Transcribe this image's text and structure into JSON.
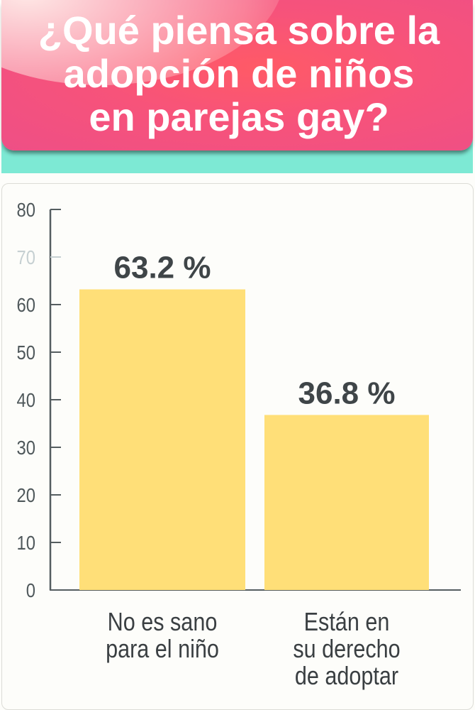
{
  "header": {
    "title_lines": [
      "¿Qué piensa sobre la",
      "adopción de niños",
      "en parejas gay?"
    ]
  },
  "colors": {
    "banner": "#f7537a",
    "band": "#7de9d4",
    "bar": "#ffdf78",
    "axis": "#555d60",
    "label": "#3f4548"
  },
  "chart_data": {
    "type": "bar",
    "title": "¿Qué piensa sobre la adopción de niños en parejas gay?",
    "categories": [
      [
        "No es sano",
        "para el niño"
      ],
      [
        "Están en",
        "su derecho",
        "de adoptar"
      ]
    ],
    "values": [
      63.2,
      36.8
    ],
    "data_labels": [
      "63.2 %",
      "36.8 %"
    ],
    "yticks": [
      0,
      10,
      20,
      30,
      40,
      50,
      60,
      70,
      80
    ],
    "ylim": [
      0,
      80
    ],
    "grid": false,
    "legend": "none"
  }
}
